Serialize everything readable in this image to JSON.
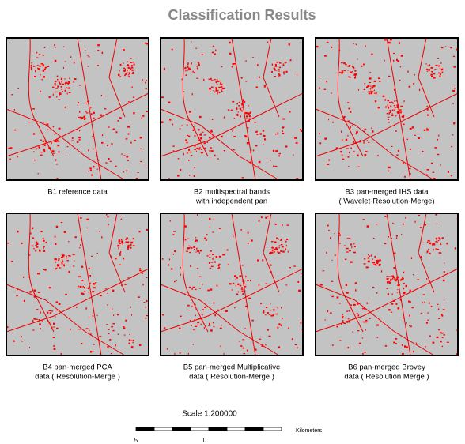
{
  "title": "Classification Results",
  "panels": [
    {
      "caption": [
        "B1 reference data"
      ]
    },
    {
      "caption": [
        "B2 multispectral bands",
        "with independent pan"
      ]
    },
    {
      "caption": [
        "B3 pan-merged IHS data",
        "( Wavelet-Resolution-Merge)"
      ]
    },
    {
      "caption": [
        "B4 pan-merged PCA",
        "data ( Resolution-Merge )"
      ]
    },
    {
      "caption": [
        "B5 pan-merged Multiplicative",
        "data ( Resolution-Merge )"
      ]
    },
    {
      "caption": [
        "B6 pan-merged Brovey",
        "data ( Resolution Merge )"
      ]
    }
  ],
  "scale": {
    "label": "Scale  1:200000",
    "left": "5",
    "middle": "0",
    "unit": "Kilometers"
  }
}
